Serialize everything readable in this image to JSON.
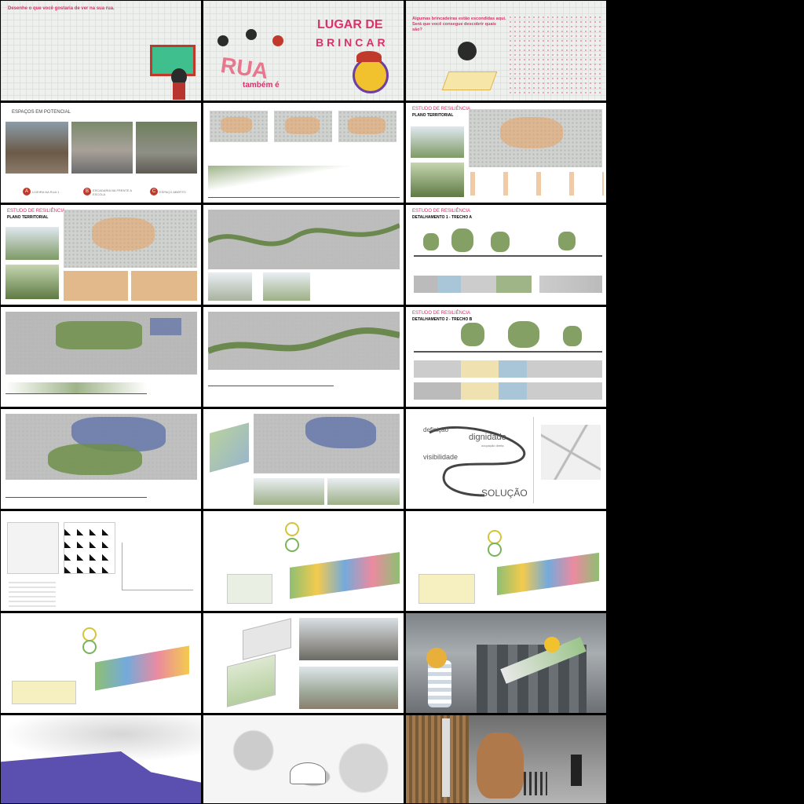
{
  "page1": {
    "caption": "Desenhe o que você gostaria de ver na sua rua."
  },
  "page2": {
    "title_line1": "LUGAR DE",
    "title_line2": "BRINCAR",
    "rua": "RUA",
    "tambem": "também é"
  },
  "page3": {
    "caption": "Algumas brincadeiras estão escondidas aqui. Será que você consegue descobrir quais são?"
  },
  "page4": {
    "title": "ESPAÇOS EM POTENCIAL",
    "labels": [
      "LIXEIRA NA RUA 1",
      "ESCADARIA NA FRENTE A ESCOLA",
      "ESPAÇO ABERTO"
    ],
    "letters": [
      "A",
      "B",
      "C"
    ]
  },
  "page6": {
    "heading": "ESTUDO DE RESILIÊNCIA",
    "subheading": "PLANO TERRITORIAL"
  },
  "page7": {
    "heading": "ESTUDO DE RESILIÊNCIA",
    "subheading": "PLANO TERRITORIAL"
  },
  "page9": {
    "heading": "ESTUDO DE RESILIÊNCIA",
    "subheading": "DETALHAMENTO 1 - TRECHO A"
  },
  "page12": {
    "heading": "ESTUDO DE RESILIÊNCIA",
    "subheading": "DETALHAMENTO 2 - TRECHO B"
  },
  "page15": {
    "words": [
      "definição",
      "dignidade",
      "visibilidade",
      "SOLUÇÃO"
    ],
    "sub": "ocupação direta"
  },
  "colors": {
    "pink": "#d6336c",
    "green": "#6f8f4a",
    "orange": "#e9a15f",
    "purple": "#5b4fb0"
  }
}
